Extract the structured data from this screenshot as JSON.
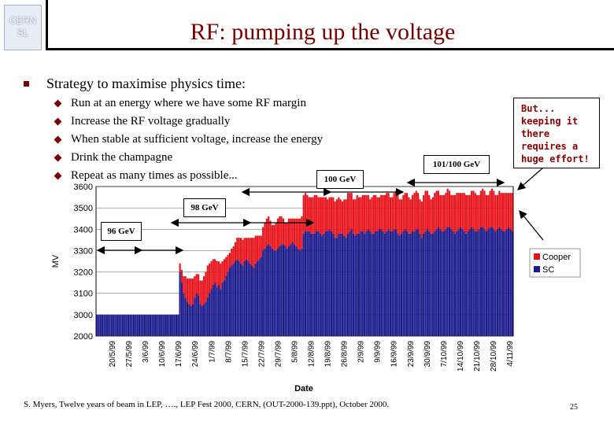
{
  "slide": {
    "title": "RF: pumping up the voltage",
    "logo_line1": "CERN",
    "logo_line2": "SL",
    "heading": "Strategy to maximise physics time:",
    "bullets": [
      "Run at an energy where we have some RF margin",
      "Increase the RF voltage gradually",
      "When stable at sufficient voltage, increase the energy",
      "Drink the champagne",
      "Repeat as many times as possible..."
    ],
    "note": "But...\nkeeping it\nthere\nrequires a\nhuge effort!",
    "footer": "S. Myers, Twelve years of beam in LEP, …., LEP Fest 2000, CERN, (OUT-2000-139.ppt), October 2000.",
    "page_number": "25",
    "colors": {
      "title": "#7a0000",
      "copper": "#e8141b",
      "sc": "#1c1c8c"
    }
  },
  "chart_data": {
    "type": "bar",
    "stacked": true,
    "xlabel": "Date",
    "ylabel": "MV",
    "ylim": [
      2000,
      3600
    ],
    "yticks": [
      2000,
      3000,
      3100,
      3200,
      3300,
      3400,
      3500,
      3600
    ],
    "xtick_labels": [
      "20/5/99",
      "27/5/99",
      "3/6/99",
      "10/6/99",
      "17/6/99",
      "24/6/99",
      "1/7/99",
      "8/7/99",
      "15/7/99",
      "22/7/99",
      "29/7/99",
      "5/8/99",
      "12/8/99",
      "19/8/99",
      "26/8/99",
      "2/9/99",
      "9/9/99",
      "16/9/99",
      "23/9/99",
      "30/9/99",
      "7/10/99",
      "14/10/99",
      "21/10/99",
      "28/10/99",
      "4/11/99"
    ],
    "legend": [
      "Cooper",
      "SC"
    ],
    "legend_position": "right",
    "annotations": [
      {
        "label": "96 GeV"
      },
      {
        "label": "98 GeV"
      },
      {
        "label": "100 GeV"
      },
      {
        "label": "101/100 GeV"
      }
    ],
    "sc_values": [
      3000,
      3000,
      3000,
      3000,
      3000,
      3000,
      3000,
      3000,
      3000,
      3000,
      3000,
      3000,
      3000,
      3000,
      3000,
      3000,
      3000,
      3000,
      3000,
      3000,
      3000,
      3000,
      3000,
      3000,
      3000,
      3000,
      3000,
      3000,
      3000,
      3000,
      3000,
      3000,
      3000,
      3000,
      3000,
      3000,
      3000,
      3000,
      3000,
      3000,
      3000,
      3000,
      3000,
      3000,
      3000,
      3200,
      3150,
      3100,
      3080,
      3060,
      3050,
      3040,
      3050,
      3080,
      3100,
      3090,
      3050,
      3040,
      3050,
      3060,
      3080,
      3100,
      3120,
      3140,
      3150,
      3130,
      3140,
      3120,
      3150,
      3160,
      3180,
      3200,
      3220,
      3230,
      3240,
      3250,
      3260,
      3250,
      3240,
      3230,
      3250,
      3260,
      3250,
      3240,
      3230,
      3220,
      3240,
      3250,
      3260,
      3270,
      3300,
      3310,
      3320,
      3330,
      3320,
      3310,
      3300,
      3300,
      3310,
      3320,
      3330,
      3330,
      3320,
      3310,
      3320,
      3330,
      3340,
      3330,
      3320,
      3310,
      3300,
      3310,
      3380,
      3390,
      3390,
      3390,
      3380,
      3380,
      3380,
      3390,
      3390,
      3380,
      3370,
      3380,
      3390,
      3390,
      3400,
      3390,
      3380,
      3360,
      3360,
      3380,
      3380,
      3380,
      3370,
      3360,
      3380,
      3390,
      3400,
      3380,
      3370,
      3380,
      3380,
      3390,
      3390,
      3380,
      3390,
      3400,
      3390,
      3380,
      3380,
      3390,
      3390,
      3400,
      3400,
      3390,
      3380,
      3390,
      3400,
      3390,
      3390,
      3400,
      3400,
      3380,
      3370,
      3380,
      3390,
      3400,
      3390,
      3380,
      3380,
      3390,
      3390,
      3400,
      3400,
      3380,
      3360,
      3380,
      3390,
      3400,
      3390,
      3380,
      3380,
      3390,
      3400,
      3410,
      3400,
      3390,
      3390,
      3400,
      3410,
      3410,
      3400,
      3390,
      3380,
      3390,
      3400,
      3410,
      3400,
      3390,
      3380,
      3390,
      3400,
      3410,
      3400,
      3390,
      3390,
      3400,
      3410,
      3410,
      3400,
      3390,
      3400,
      3410,
      3410,
      3400,
      3390,
      3400,
      3410,
      3400,
      3390,
      3390,
      3400,
      3410,
      3400,
      3390
    ],
    "copper_values": [
      0,
      0,
      0,
      0,
      0,
      0,
      0,
      0,
      0,
      0,
      0,
      0,
      0,
      0,
      0,
      0,
      0,
      0,
      0,
      0,
      0,
      0,
      0,
      0,
      0,
      0,
      0,
      0,
      0,
      0,
      0,
      0,
      0,
      0,
      0,
      0,
      0,
      0,
      0,
      0,
      0,
      0,
      0,
      0,
      0,
      40,
      60,
      80,
      100,
      110,
      120,
      130,
      120,
      100,
      90,
      100,
      110,
      120,
      130,
      140,
      150,
      140,
      130,
      120,
      110,
      120,
      110,
      120,
      100,
      100,
      90,
      80,
      70,
      80,
      80,
      90,
      100,
      110,
      120,
      120,
      110,
      100,
      110,
      120,
      130,
      140,
      130,
      120,
      110,
      100,
      110,
      120,
      130,
      130,
      120,
      110,
      120,
      130,
      140,
      140,
      130,
      120,
      110,
      120,
      130,
      120,
      110,
      120,
      130,
      140,
      150,
      150,
      180,
      180,
      170,
      160,
      170,
      170,
      180,
      170,
      160,
      170,
      180,
      170,
      160,
      150,
      150,
      160,
      170,
      170,
      180,
      170,
      160,
      150,
      170,
      180,
      190,
      180,
      170,
      160,
      170,
      180,
      170,
      160,
      170,
      180,
      170,
      160,
      150,
      170,
      180,
      170,
      160,
      150,
      160,
      170,
      180,
      180,
      170,
      160,
      160,
      170,
      180,
      180,
      170,
      160,
      170,
      170,
      180,
      170,
      160,
      170,
      180,
      180,
      170,
      160,
      170,
      180,
      190,
      180,
      170,
      160,
      170,
      180,
      180,
      170,
      160,
      170,
      170,
      170,
      180,
      170,
      160,
      170,
      180,
      180,
      170,
      160,
      170,
      180,
      180,
      170,
      160,
      170,
      180,
      180,
      170,
      160,
      170,
      180,
      180,
      170,
      160,
      170,
      180,
      180,
      170,
      160,
      170,
      170,
      180,
      180,
      170,
      160,
      170,
      180
    ]
  }
}
